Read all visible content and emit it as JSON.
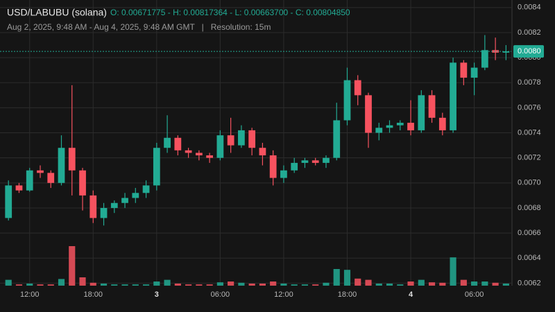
{
  "chart_data": {
    "type": "candlestick",
    "title": "USD/LABUBU (solana)",
    "ohlc_summary": "O: 0.00671775 - H: 0.00817364 - L: 0.00663700 - C: 0.00804850",
    "subtitle": "Aug 2, 2025, 9:48 AM - Aug 4, 2025, 9:48 AM GMT   |   Resolution: 15m",
    "up_color": "#22ab94",
    "down_color": "#f7525f",
    "grid": true,
    "xlim": [
      -0.8,
      47.5
    ],
    "xticks": [
      {
        "value": 2,
        "label": "12:00"
      },
      {
        "value": 8,
        "label": "18:00"
      },
      {
        "value": 14,
        "label": "3"
      },
      {
        "value": 20,
        "label": "06:00"
      },
      {
        "value": 26,
        "label": "12:00"
      },
      {
        "value": 32,
        "label": "18:00"
      },
      {
        "value": 38,
        "label": "4"
      },
      {
        "value": 44,
        "label": "06:00"
      }
    ],
    "ylim": [
      0.00618,
      0.00846
    ],
    "yticks": [
      0.0062,
      0.0064,
      0.0066,
      0.0068,
      {
        "value": 0.007,
        "label": "0.0070"
      },
      0.0072,
      0.0074,
      0.0076,
      0.0078,
      {
        "value": 0.008,
        "label": "0.0080"
      },
      0.0082,
      0.0084
    ],
    "last_price": {
      "value": 0.00805,
      "label": "0.0080"
    },
    "y2lim": [
      0,
      100
    ],
    "open": [
      0.00672,
      0.00698,
      0.00694,
      0.0071,
      0.00708,
      0.007,
      0.00728,
      0.0071,
      0.0069,
      0.00672,
      0.0068,
      0.00684,
      0.00688,
      0.00692,
      0.00698,
      0.00728,
      0.00736,
      0.00726,
      0.00724,
      0.00722,
      0.0072,
      0.00738,
      0.0073,
      0.00742,
      0.00728,
      0.00722,
      0.00704,
      0.0071,
      0.00716,
      0.00718,
      0.00716,
      0.0072,
      0.0075,
      0.00782,
      0.0077,
      0.0074,
      0.00744,
      0.00746,
      0.00748,
      0.00742,
      0.0077,
      0.00752,
      0.00742,
      0.00796,
      0.00784,
      0.00792,
      0.00806,
      0.00804
    ],
    "high": [
      0.00702,
      0.007,
      0.00712,
      0.00714,
      0.0071,
      0.00738,
      0.00778,
      0.00712,
      0.00694,
      0.00684,
      0.00686,
      0.00692,
      0.00696,
      0.00702,
      0.00732,
      0.00754,
      0.00738,
      0.00728,
      0.00726,
      0.00724,
      0.00742,
      0.00752,
      0.00746,
      0.00744,
      0.00732,
      0.00726,
      0.00714,
      0.0072,
      0.0072,
      0.0072,
      0.00722,
      0.00764,
      0.00792,
      0.00786,
      0.00772,
      0.00748,
      0.0075,
      0.0075,
      0.00766,
      0.00774,
      0.00774,
      0.00756,
      0.008,
      0.00798,
      0.00796,
      0.00818,
      0.00816,
      0.0081
    ],
    "low": [
      0.0067,
      0.00692,
      0.00693,
      0.00704,
      0.00696,
      0.00698,
      0.0069,
      0.00678,
      0.00668,
      0.00666,
      0.00676,
      0.0068,
      0.00684,
      0.00688,
      0.00694,
      0.00724,
      0.00722,
      0.0072,
      0.00718,
      0.00716,
      0.00718,
      0.00724,
      0.00728,
      0.00722,
      0.00714,
      0.00698,
      0.007,
      0.00708,
      0.00712,
      0.00714,
      0.00712,
      0.00718,
      0.00746,
      0.00762,
      0.00728,
      0.00734,
      0.0074,
      0.00742,
      0.00738,
      0.0074,
      0.00748,
      0.00738,
      0.0074,
      0.00778,
      0.0077,
      0.0079,
      0.00798,
      0.00798
    ],
    "close": [
      0.00698,
      0.00694,
      0.0071,
      0.00708,
      0.007,
      0.00728,
      0.0071,
      0.0069,
      0.00672,
      0.0068,
      0.00684,
      0.00688,
      0.00692,
      0.00698,
      0.00728,
      0.00736,
      0.00726,
      0.00724,
      0.00722,
      0.0072,
      0.00738,
      0.0073,
      0.00742,
      0.00728,
      0.00722,
      0.00704,
      0.0071,
      0.00716,
      0.00718,
      0.00716,
      0.0072,
      0.0075,
      0.00782,
      0.0077,
      0.0074,
      0.00744,
      0.00746,
      0.00748,
      0.00742,
      0.0077,
      0.00752,
      0.00742,
      0.00796,
      0.00784,
      0.00792,
      0.00806,
      0.00804,
      0.00805
    ],
    "volume": [
      14,
      3,
      5,
      3,
      3,
      16,
      95,
      20,
      7,
      5,
      3,
      3,
      3,
      3,
      10,
      14,
      5,
      3,
      3,
      3,
      8,
      10,
      7,
      5,
      5,
      10,
      5,
      3,
      3,
      3,
      7,
      40,
      38,
      17,
      14,
      5,
      5,
      3,
      10,
      14,
      8,
      7,
      68,
      14,
      10,
      10,
      7,
      5
    ]
  }
}
